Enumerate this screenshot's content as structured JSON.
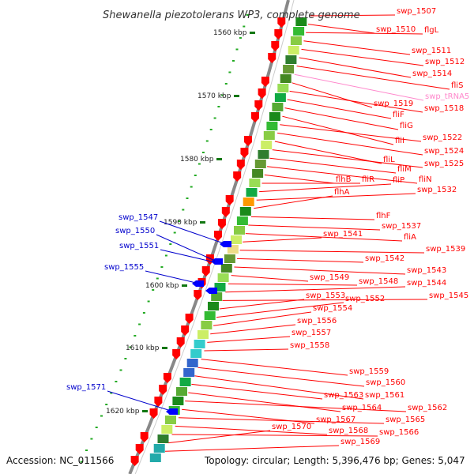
{
  "title": "Shewanella piezotolerans WP3, complete genome",
  "footer": {
    "accession": "Accession: NC_011566",
    "summary": "Topology: circular; Length: 5,396,476 bp; Genes: 5,047"
  },
  "scale_ticks": [
    "1560 kbp",
    "1570 kbp",
    "1580 kbp",
    "1590 kbp",
    "1600 kbp",
    "1610 kbp",
    "1620 kbp"
  ],
  "colors": {
    "forward_label": "#ff0000",
    "reverse_label": "#0000cc",
    "rna_label": "#ff88cc",
    "forward_gene": "#ff0000",
    "reverse_gene": "#0000ff",
    "backbone": "#888888",
    "tick_dot": "#22aa22"
  },
  "right_labels": [
    "swp_1507",
    "swp_1510",
    "flgL",
    "swp_1511",
    "swp_1512",
    "swp_1514",
    "fliS",
    "swp_tRNA5",
    "swp_1519",
    "swp_1518",
    "fliF",
    "fliG",
    "fliI",
    "swp_1522",
    "swp_1524",
    "fliL",
    "swp_1525",
    "fliM",
    "fliN",
    "flhB",
    "fliR",
    "fliP",
    "swp_1532",
    "flhA",
    "flhF",
    "swp_1537",
    "fliA",
    "swp_1541",
    "swp_1539",
    "swp_1542",
    "swp_1543",
    "swp_1549",
    "swp_1548",
    "swp_1544",
    "swp_1545",
    "swp_1553",
    "swp_1552",
    "swp_1554",
    "swp_1556",
    "swp_1557",
    "swp_1558",
    "swp_1559",
    "swp_1560",
    "swp_1561",
    "swp_1563",
    "swp_1564",
    "swp_1562",
    "swp_1567",
    "swp_1565",
    "swp_1568",
    "swp_1566",
    "swp_1570",
    "swp_1569"
  ],
  "left_labels": [
    "swp_1547",
    "swp_1550",
    "swp_1551",
    "swp_1555",
    "swp_1571"
  ]
}
